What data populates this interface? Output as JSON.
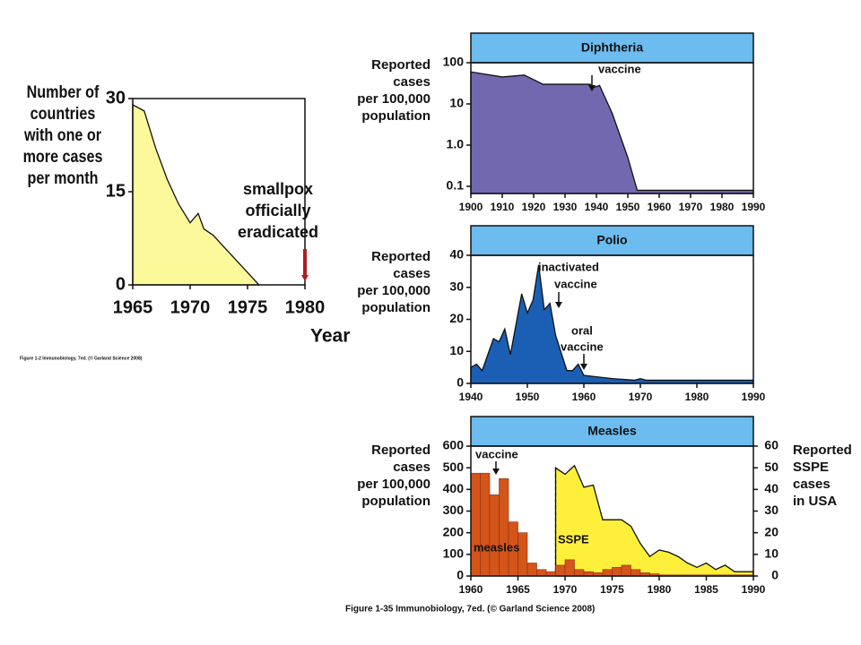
{
  "chart_data": [
    {
      "type": "area",
      "ylabel": [
        "Number of",
        "countries",
        "with one or",
        "more cases",
        "per month"
      ],
      "xlabel": "Year",
      "x": [
        1965,
        1966,
        1967,
        1968,
        1969,
        1970,
        1970.7,
        1971.2,
        1972,
        1973,
        1974,
        1975,
        1976
      ],
      "series": [
        {
          "color": "#fcf99a",
          "values": [
            29,
            28,
            22,
            17,
            13,
            10,
            11.5,
            9,
            8,
            6,
            4,
            2,
            0
          ]
        }
      ],
      "xlim": [
        1965,
        1980
      ],
      "xticks": [
        1965,
        1970,
        1975,
        1980
      ],
      "ylim": [
        0,
        30
      ],
      "yticks": [
        0,
        15,
        30
      ],
      "annotations": [
        [
          "smallpox",
          "officially",
          "eradicated"
        ]
      ],
      "caption": "Figure 1-2 Immunobiology, 7ed. (© Garland Science 2008)"
    },
    {
      "type": "area",
      "title": "Diphtheria",
      "ylabel": [
        "Reported",
        "cases",
        "per 100,000",
        "population"
      ],
      "log_y": true,
      "x": [
        1900,
        1910,
        1917,
        1923,
        1938,
        1939,
        1941,
        1945,
        1950,
        1953,
        1990
      ],
      "series": [
        {
          "color": "#7168b0",
          "values": [
            60,
            45,
            50,
            30,
            30,
            25,
            28,
            6,
            0.5,
            0.08,
            0.08
          ]
        }
      ],
      "xlim": [
        1900,
        1990
      ],
      "xticks": [
        1900,
        1910,
        1920,
        1930,
        1940,
        1950,
        1960,
        1970,
        1980,
        1990
      ],
      "ylim": [
        0.067,
        100
      ],
      "yticks": [
        100,
        10,
        {
          "value": 1,
          "label": "1.0"
        },
        0.1
      ],
      "annotations": [
        [
          "vaccine"
        ]
      ]
    },
    {
      "type": "area",
      "title": "Polio",
      "ylabel": [
        "Reported",
        "cases",
        "per 100,000",
        "population"
      ],
      "x": [
        1940,
        1941,
        1942,
        1944,
        1945,
        1946,
        1947,
        1949,
        1950,
        1951,
        1952,
        1953,
        1954,
        1955,
        1957,
        1958,
        1959,
        1960,
        1965,
        1969,
        1970,
        1971,
        1990
      ],
      "series": [
        {
          "color": "#1a5fb4",
          "values": [
            5,
            6,
            4,
            14,
            13,
            17,
            9,
            28,
            22,
            26,
            37,
            23,
            25,
            15,
            4,
            4,
            6,
            2.5,
            1.5,
            1,
            1.5,
            1,
            1
          ]
        }
      ],
      "xlim": [
        1940,
        1990
      ],
      "xticks": [
        1940,
        1950,
        1960,
        1970,
        1980,
        1990
      ],
      "ylim": [
        0,
        40
      ],
      "yticks": [
        0,
        10,
        20,
        30,
        40
      ],
      "annotations": [
        [
          "inactivated",
          "vaccine"
        ],
        [
          "oral",
          "vaccine"
        ]
      ]
    },
    {
      "type": "step",
      "title": "Measles",
      "ylabel": [
        "Reported",
        "cases",
        "per 100,000",
        "population"
      ],
      "y2label": [
        "Reported",
        "SSPE",
        "cases",
        "in USA"
      ],
      "x": [
        1960,
        1961,
        1962,
        1963,
        1964,
        1965,
        1966,
        1967,
        1968,
        1969,
        1970,
        1971,
        1972,
        1973,
        1974,
        1975,
        1976,
        1977,
        1978,
        1979,
        1980,
        1981,
        1982,
        1983,
        1984,
        1985,
        1986,
        1987,
        1988,
        1989
      ],
      "series": [
        {
          "name": "measles",
          "color": "#d4551a",
          "values": [
            475,
            475,
            375,
            450,
            250,
            200,
            60,
            30,
            20,
            50,
            75,
            30,
            20,
            15,
            30,
            40,
            50,
            30,
            15,
            10,
            5,
            5,
            5,
            5,
            5,
            5,
            5,
            5,
            5,
            5
          ]
        },
        {
          "name": "SSPE",
          "color": "#fef03a",
          "axis": "y2",
          "x": [
            1969,
            1970,
            1971,
            1972,
            1973,
            1974,
            1976,
            1977,
            1978,
            1979,
            1980,
            1981,
            1982,
            1983,
            1984,
            1985,
            1986,
            1987,
            1988,
            1990
          ],
          "values": [
            50,
            47,
            51,
            41,
            42,
            26,
            26,
            23,
            15,
            9,
            12,
            11,
            9,
            6,
            4,
            6,
            3,
            5,
            2,
            2
          ]
        }
      ],
      "xlim": [
        1960,
        1990
      ],
      "xticks": [
        1960,
        1965,
        1970,
        1975,
        1980,
        1985,
        1990
      ],
      "ylim": [
        0,
        600
      ],
      "yticks": [
        0,
        100,
        200,
        300,
        400,
        500,
        600
      ],
      "y2lim": [
        0,
        60
      ],
      "y2ticks": [
        0,
        10,
        20,
        30,
        40,
        50,
        60
      ],
      "annotations": [
        [
          "vaccine"
        ]
      ],
      "caption": "Figure 1-35 Immunobiology, 7ed. (© Garland Science 2008)"
    }
  ]
}
